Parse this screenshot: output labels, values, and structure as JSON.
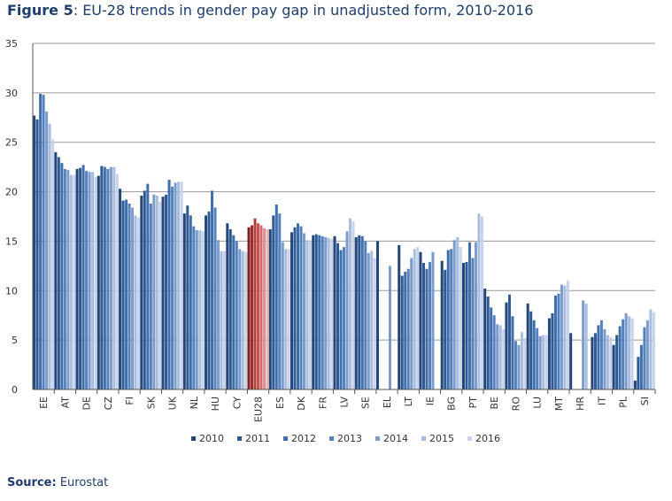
{
  "figure": {
    "label": "Figure 5",
    "title": "EU-28 trends in gender pay gap in unadjusted form, 2010-2016",
    "source_label": "Source:",
    "source_text": "Eurostat"
  },
  "colors": {
    "series": [
      "#24467a",
      "#2d5a94",
      "#3f6eaa",
      "#5582bd",
      "#7b9ccb",
      "#a9bedf",
      "#c7d3e8"
    ],
    "highlight": [
      "#7d1f1f",
      "#9c2c2c",
      "#b53c3c",
      "#c65050",
      "#d36d6d",
      "#df9090",
      "#e9b4b4"
    ],
    "grid": "#9a9a9a",
    "axis": "#555555"
  },
  "chart_data": {
    "type": "bar",
    "ylim": [
      0,
      35
    ],
    "yticks": [
      0,
      5,
      10,
      15,
      20,
      25,
      30,
      35
    ],
    "grid": true,
    "legend_position": "bottom",
    "highlight_category": "EU28",
    "categories": [
      "EE",
      "AT",
      "DE",
      "CZ",
      "FI",
      "SK",
      "UK",
      "NL",
      "HU",
      "CY",
      "EU28",
      "ES",
      "DK",
      "FR",
      "LV",
      "SE",
      "EL",
      "LT",
      "IE",
      "BG",
      "PT",
      "BE",
      "RO",
      "LU",
      "MT",
      "HR",
      "IT",
      "PL",
      "SI"
    ],
    "series": [
      {
        "name": "2010",
        "values": [
          27.7,
          24.0,
          22.3,
          21.6,
          20.3,
          19.6,
          19.5,
          17.8,
          17.6,
          16.8,
          16.4,
          16.2,
          15.9,
          15.6,
          15.5,
          15.4,
          15.0,
          14.6,
          13.9,
          13.0,
          12.8,
          10.2,
          8.8,
          8.7,
          7.2,
          5.7,
          5.3,
          4.5,
          0.9
        ]
      },
      {
        "name": "2011",
        "values": [
          27.3,
          23.5,
          22.4,
          22.6,
          19.1,
          20.1,
          19.7,
          18.6,
          18.0,
          16.2,
          16.6,
          17.6,
          16.4,
          15.7,
          14.8,
          15.6,
          null,
          11.5,
          12.8,
          12.1,
          12.9,
          9.4,
          9.6,
          7.9,
          7.7,
          null,
          5.7,
          5.5,
          3.3
        ]
      },
      {
        "name": "2012",
        "values": [
          29.9,
          22.9,
          22.7,
          22.5,
          19.2,
          20.8,
          21.2,
          17.6,
          20.1,
          15.6,
          17.3,
          18.7,
          16.8,
          15.6,
          14.1,
          15.5,
          null,
          11.9,
          12.2,
          14.1,
          14.9,
          8.3,
          7.4,
          7.0,
          9.5,
          null,
          6.5,
          6.4,
          4.5
        ]
      },
      {
        "name": "2013",
        "values": [
          29.8,
          22.3,
          22.1,
          22.3,
          18.8,
          18.8,
          20.5,
          16.5,
          18.4,
          15.0,
          16.8,
          17.8,
          16.5,
          15.5,
          14.4,
          15.0,
          null,
          12.2,
          12.9,
          14.2,
          13.3,
          7.5,
          4.9,
          6.2,
          9.7,
          null,
          7.0,
          7.1,
          6.3
        ]
      },
      {
        "name": "2014",
        "values": [
          28.1,
          22.2,
          22.0,
          22.5,
          18.4,
          19.7,
          20.9,
          16.1,
          15.1,
          14.2,
          16.6,
          14.9,
          15.8,
          15.4,
          16.0,
          13.8,
          12.5,
          13.3,
          13.9,
          15.1,
          14.9,
          6.6,
          4.5,
          5.4,
          10.6,
          9.0,
          6.1,
          7.7,
          7.0
        ]
      },
      {
        "name": "2015",
        "values": [
          26.9,
          21.7,
          22.0,
          22.5,
          17.6,
          19.6,
          21.0,
          16.1,
          14.0,
          14.0,
          16.3,
          14.2,
          15.1,
          15.3,
          17.3,
          14.0,
          null,
          14.2,
          null,
          15.4,
          17.8,
          6.5,
          5.8,
          5.5,
          10.5,
          8.7,
          5.5,
          7.4,
          8.1
        ]
      },
      {
        "name": "2016",
        "values": [
          25.3,
          21.7,
          21.5,
          21.8,
          17.4,
          19.0,
          21.0,
          16.0,
          14.0,
          13.9,
          16.2,
          14.2,
          15.0,
          15.2,
          17.0,
          13.3,
          null,
          14.4,
          null,
          14.4,
          17.5,
          6.1,
          5.2,
          5.5,
          11.0,
          null,
          5.3,
          7.2,
          7.8
        ]
      }
    ]
  }
}
